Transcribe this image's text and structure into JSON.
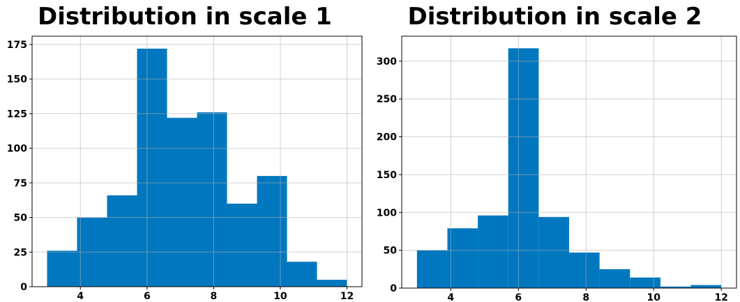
{
  "chart_data": [
    {
      "type": "bar",
      "title": "Distribution in scale 1",
      "xlabel": "",
      "ylabel": "",
      "bin_edges": [
        3.0,
        3.9,
        4.8,
        5.7,
        6.6,
        7.5,
        8.4,
        9.3,
        10.2,
        11.1,
        12.0
      ],
      "values": [
        26,
        50,
        66,
        172,
        122,
        126,
        60,
        80,
        18,
        5
      ],
      "xlim": [
        2.55,
        12.45
      ],
      "ylim": [
        0,
        181
      ],
      "xticks": [
        "4",
        "6",
        "8",
        "10",
        "12"
      ],
      "yticks": [
        "0",
        "25",
        "50",
        "75",
        "100",
        "125",
        "150",
        "175"
      ],
      "grid": true,
      "bar_color": "#0077be"
    },
    {
      "type": "bar",
      "title": "Distribution in scale 2",
      "xlabel": "",
      "ylabel": "",
      "bin_edges": [
        3.0,
        3.9,
        4.8,
        5.7,
        6.6,
        7.5,
        8.4,
        9.3,
        10.2,
        11.1,
        12.0
      ],
      "values": [
        50,
        79,
        96,
        317,
        94,
        47,
        25,
        14,
        2,
        4
      ],
      "xlim": [
        2.55,
        12.45
      ],
      "ylim": [
        0,
        333
      ],
      "xticks": [
        "4",
        "6",
        "8",
        "10",
        "12"
      ],
      "yticks": [
        "0",
        "50",
        "100",
        "150",
        "200",
        "250",
        "300"
      ],
      "grid": true,
      "bar_color": "#0077be"
    }
  ]
}
